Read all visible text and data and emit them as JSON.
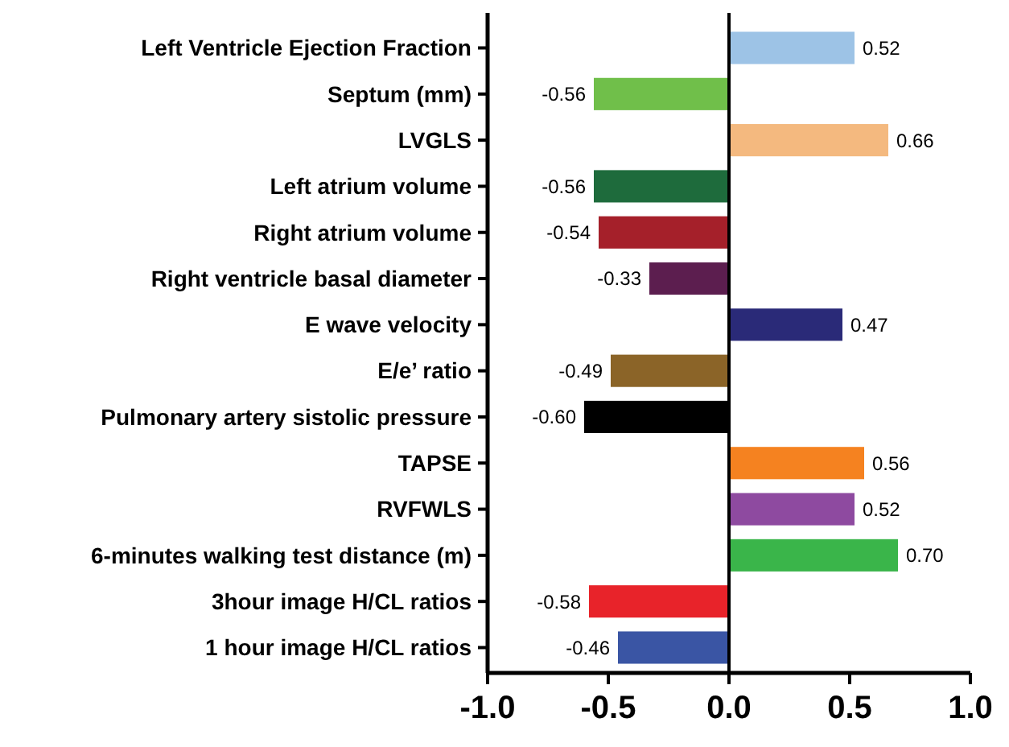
{
  "chart_data": {
    "type": "bar",
    "orientation": "horizontal",
    "categories": [
      "Left Ventricle Ejection Fraction",
      "Septum (mm)",
      "LVGLS",
      "Left atrium volume",
      "Right atrium volume",
      "Right ventricle basal diameter",
      "E wave velocity",
      "E/e’ ratio",
      "Pulmonary artery sistolic pressure",
      "TAPSE",
      "RVFWLS",
      "6-minutes walking test distance (m)",
      "3hour image H/CL ratios",
      "1 hour image H/CL ratios"
    ],
    "values": [
      0.52,
      -0.56,
      0.66,
      -0.56,
      -0.54,
      -0.33,
      0.47,
      -0.49,
      -0.6,
      0.56,
      0.52,
      0.7,
      -0.58,
      -0.46
    ],
    "value_labels": [
      "0.52",
      "-0.56",
      "0.66",
      "-0.56",
      "-0.54",
      "-0.33",
      "0.47",
      "-0.49",
      "-0.60",
      "0.56",
      "0.52",
      "0.70",
      "-0.58",
      "-0.46"
    ],
    "colors": [
      "#9dc3e6",
      "#70bf4a",
      "#f4b97f",
      "#1e6b3c",
      "#a5202a",
      "#5c1e4f",
      "#2a2a78",
      "#8b6428",
      "#000000",
      "#f58220",
      "#8e4aa0",
      "#3ab54a",
      "#e8232a",
      "#3a55a4"
    ],
    "xlim": [
      -1,
      1
    ],
    "xticks": [
      {
        "value": -1,
        "label": "-1.0"
      },
      {
        "value": -0.5,
        "label": "-0.5"
      },
      {
        "value": 0,
        "label": "0.0"
      },
      {
        "value": 0.5,
        "label": "0.5"
      },
      {
        "value": 1,
        "label": "1.0"
      }
    ],
    "tick_labels": true
  }
}
